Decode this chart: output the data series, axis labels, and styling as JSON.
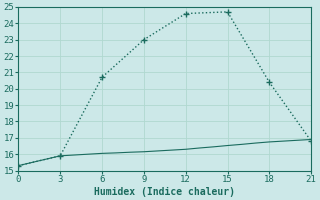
{
  "xlabel": "Humidex (Indice chaleur)",
  "line1_x": [
    0,
    3,
    6,
    9,
    12,
    15,
    18,
    21
  ],
  "line1_y": [
    15.3,
    15.9,
    20.7,
    23.0,
    24.6,
    24.7,
    20.4,
    16.8
  ],
  "line2_x": [
    0,
    3,
    6,
    7,
    8,
    9,
    10,
    11,
    12,
    13,
    14,
    15,
    16,
    17,
    18,
    19,
    20,
    21
  ],
  "line2_y": [
    15.3,
    15.9,
    16.05,
    16.08,
    16.12,
    16.15,
    16.2,
    16.25,
    16.3,
    16.38,
    16.45,
    16.53,
    16.6,
    16.68,
    16.75,
    16.8,
    16.85,
    16.9
  ],
  "line_color": "#1a6b5e",
  "bg_color": "#cce8e8",
  "grid_color": "#b0d8d0",
  "xlim": [
    0,
    21
  ],
  "ylim": [
    15,
    25
  ],
  "xticks": [
    0,
    3,
    6,
    9,
    12,
    15,
    18,
    21
  ],
  "yticks": [
    15,
    16,
    17,
    18,
    19,
    20,
    21,
    22,
    23,
    24,
    25
  ]
}
